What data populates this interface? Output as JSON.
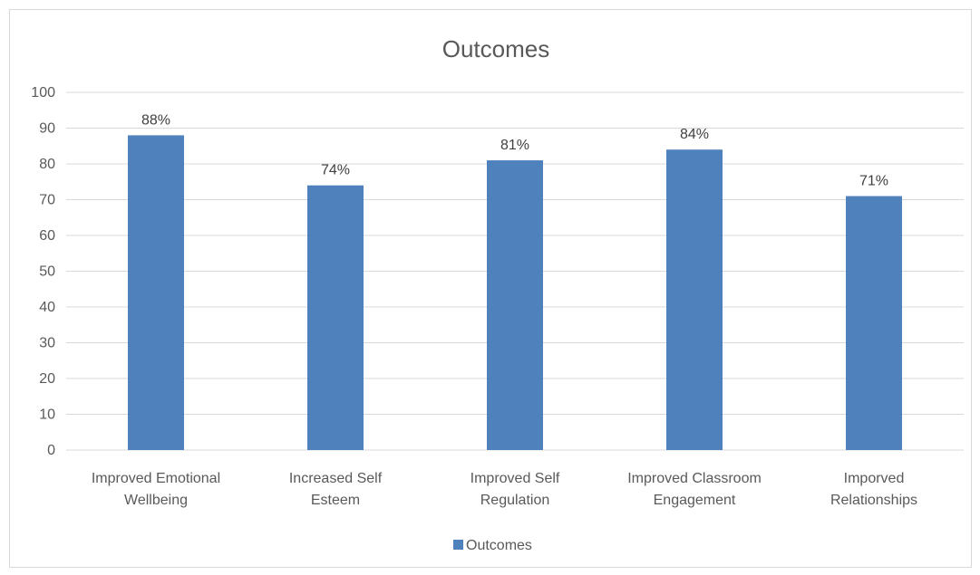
{
  "chart_data": {
    "type": "bar",
    "title": "Outcomes",
    "xlabel": "",
    "ylabel": "",
    "categories": [
      [
        "Improved Emotional",
        "Wellbeing"
      ],
      [
        "Increased Self",
        "Esteem"
      ],
      [
        "Improved Self",
        "Regulation"
      ],
      [
        "Improved Classroom",
        "Engagement"
      ],
      [
        "Imporved",
        "Relationships"
      ]
    ],
    "series": [
      {
        "name": "Outcomes",
        "values": [
          88,
          74,
          81,
          84,
          71
        ],
        "color": "#4f81bd"
      }
    ],
    "data_labels": [
      "88%",
      "74%",
      "81%",
      "84%",
      "71%"
    ],
    "ylim": [
      0,
      100
    ],
    "yticks": [
      0,
      10,
      20,
      30,
      40,
      50,
      60,
      70,
      80,
      90,
      100
    ],
    "grid": true,
    "legend_position": "bottom"
  }
}
